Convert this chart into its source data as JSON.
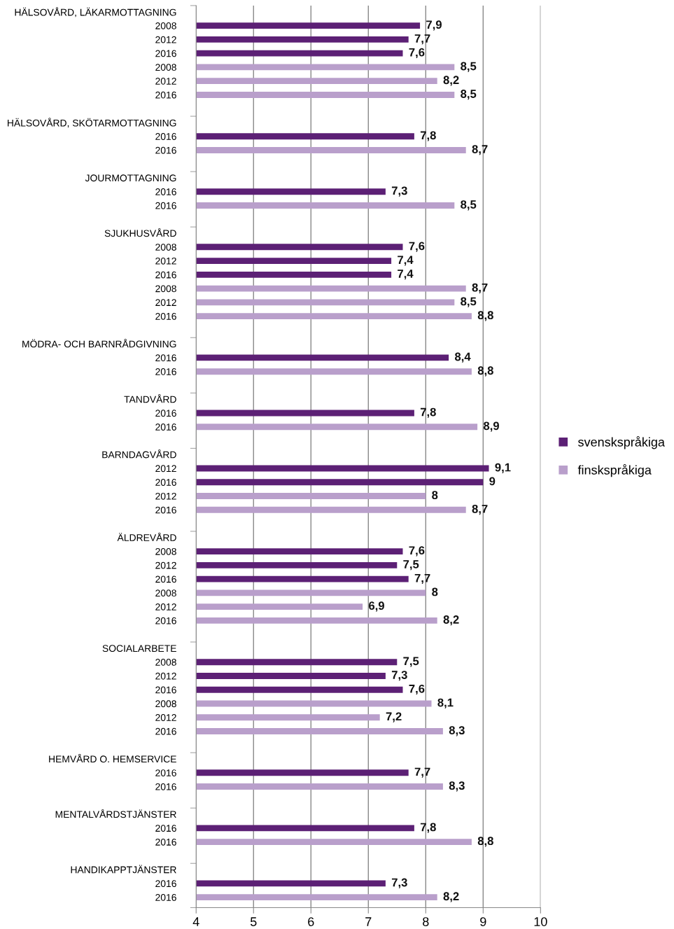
{
  "chart_data": {
    "type": "bar",
    "orientation": "horizontal",
    "categories": [
      "HÄLSOVÅRD, LÄKARMOTTAGNING",
      "2008",
      "2012",
      "2016",
      "2008",
      "2012",
      "2016",
      null,
      "HÄLSOVÅRD, SKÖTARMOTTAGNING",
      "2016",
      "2016",
      null,
      "JOURMOTTAGNING",
      "2016",
      "2016",
      null,
      "SJUKHUSVÅRD",
      "2008",
      "2012",
      "2016",
      "2008",
      "2012",
      "2016",
      null,
      "MÖDRA- OCH BARNRÅDGIVNING",
      "2016",
      "2016",
      null,
      "TANDVÅRD",
      "2016",
      "2016",
      null,
      "BARNDAGVÅRD",
      "2012",
      "2016",
      "2012",
      "2016",
      null,
      "ÄLDREVÅRD",
      "2008",
      "2012",
      "2016",
      "2008",
      "2012",
      "2016",
      null,
      "SOCIALARBETE",
      "2008",
      "2012",
      "2016",
      "2008",
      "2012",
      "2016",
      null,
      "HEMVÅRD O. HEMSERVICE",
      "2016",
      "2016",
      null,
      "MENTALVÅRDSTJÄNSTER",
      "2016",
      "2016",
      null,
      "HANDIKAPPTJÄNSTER",
      "2016",
      "2016"
    ],
    "series": [
      {
        "name": "svenskspråkiga",
        "color": "#5c2075",
        "values": [
          null,
          7.9,
          7.7,
          7.6,
          null,
          null,
          null,
          null,
          null,
          7.8,
          null,
          null,
          null,
          7.3,
          null,
          null,
          null,
          7.6,
          7.4,
          7.4,
          null,
          null,
          null,
          null,
          null,
          8.4,
          null,
          null,
          null,
          7.8,
          null,
          null,
          null,
          9.1,
          9,
          null,
          null,
          null,
          null,
          7.6,
          7.5,
          7.7,
          null,
          null,
          null,
          null,
          null,
          7.5,
          7.3,
          7.6,
          null,
          null,
          null,
          null,
          null,
          7.7,
          null,
          null,
          null,
          7.8,
          null,
          null,
          null,
          7.3,
          null
        ],
        "value_labels": [
          null,
          "7,9",
          "7,7",
          "7,6",
          null,
          null,
          null,
          null,
          null,
          "7,8",
          null,
          null,
          null,
          "7,3",
          null,
          null,
          null,
          "7,6",
          "7,4",
          "7,4",
          null,
          null,
          null,
          null,
          null,
          "8,4",
          null,
          null,
          null,
          "7,8",
          null,
          null,
          null,
          "9,1",
          "9",
          null,
          null,
          null,
          null,
          "7,6",
          "7,5",
          "7,7",
          null,
          null,
          null,
          null,
          null,
          "7,5",
          "7,3",
          "7,6",
          null,
          null,
          null,
          null,
          null,
          "7,7",
          null,
          null,
          null,
          "7,8",
          null,
          null,
          null,
          "7,3",
          null
        ]
      },
      {
        "name": "finskspråkiga",
        "color": "#b99fcb",
        "values": [
          null,
          null,
          null,
          null,
          8.5,
          8.2,
          8.5,
          null,
          null,
          null,
          8.7,
          null,
          null,
          null,
          8.5,
          null,
          null,
          null,
          null,
          null,
          8.7,
          8.5,
          8.8,
          null,
          null,
          null,
          8.8,
          null,
          null,
          null,
          8.9,
          null,
          null,
          null,
          null,
          8,
          8.7,
          null,
          null,
          null,
          null,
          null,
          8,
          6.9,
          8.2,
          null,
          null,
          null,
          null,
          null,
          8.1,
          7.2,
          8.3,
          null,
          null,
          null,
          8.3,
          null,
          null,
          null,
          8.8,
          null,
          null,
          null,
          8.2
        ],
        "value_labels": [
          null,
          null,
          null,
          null,
          "8,5",
          "8,2",
          "8,5",
          null,
          null,
          null,
          "8,7",
          null,
          null,
          null,
          "8,5",
          null,
          null,
          null,
          null,
          null,
          "8,7",
          "8,5",
          "8,8",
          null,
          null,
          null,
          "8,8",
          null,
          null,
          null,
          "8,9",
          null,
          null,
          null,
          null,
          "8",
          "8,7",
          null,
          null,
          null,
          null,
          null,
          "8",
          "6,9",
          "8,2",
          null,
          null,
          null,
          null,
          null,
          "8,1",
          "7,2",
          "8,3",
          null,
          null,
          null,
          "8,3",
          null,
          null,
          null,
          "8,8",
          null,
          null,
          null,
          "8,2"
        ]
      }
    ],
    "xlim": [
      4,
      10
    ],
    "xticks": [
      4,
      5,
      6,
      7,
      8,
      9,
      10
    ],
    "grid": "x",
    "legend": "right"
  }
}
